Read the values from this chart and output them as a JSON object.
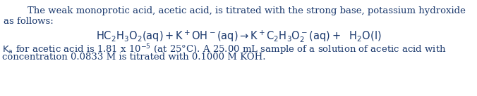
{
  "background_color": "#ffffff",
  "text_color": "#1c3a6e",
  "line1": "        The weak monoprotic acid, acetic acid, is titrated with the strong base, potassium hydroxide",
  "line2": "as follows:",
  "line4_rest": " for acetic acid is 1.81 x 10",
  "line4_rest2": " (at 25°C). A 25.00 mL sample of a solution of acetic acid with",
  "line5": "concentration 0.0833 M is titrated with 0.1000 M KOH.",
  "font_size": 9.5,
  "equation_font_size": 10.5
}
